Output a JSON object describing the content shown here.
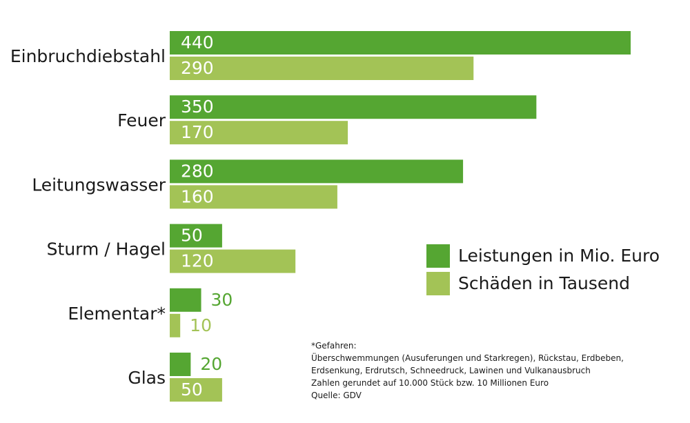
{
  "chart_data": {
    "type": "bar",
    "orientation": "horizontal",
    "categories": [
      "Einbruchdiebstahl",
      "Feuer",
      "Leitungswasser",
      "Sturm / Hagel",
      "Elementar*",
      "Glas"
    ],
    "series": [
      {
        "name": "Leistungen in Mio. Euro",
        "values": [
          440,
          350,
          280,
          50,
          30,
          20
        ],
        "color": "#55a632"
      },
      {
        "name": "Schäden in Tausend",
        "values": [
          290,
          170,
          160,
          120,
          10,
          50
        ],
        "color": "#a3c356"
      }
    ],
    "xlim": [
      0,
      440
    ],
    "legend_position": "right",
    "grid": false
  },
  "footnote": {
    "lines": [
      "*Gefahren:",
      "Überschwemmungen (Ausuferungen und Starkregen), Rückstau, Erdbeben,",
      "Erdsenkung, Erdrutsch, Schneedruck, Lawinen und Vulkanausbruch",
      "Zahlen gerundet auf 10.000 Stück bzw. 10 Millionen Euro",
      "Quelle: GDV"
    ]
  },
  "colors": {
    "label_text": "#1a1a1a",
    "inside_value_text": "#ffffff"
  }
}
